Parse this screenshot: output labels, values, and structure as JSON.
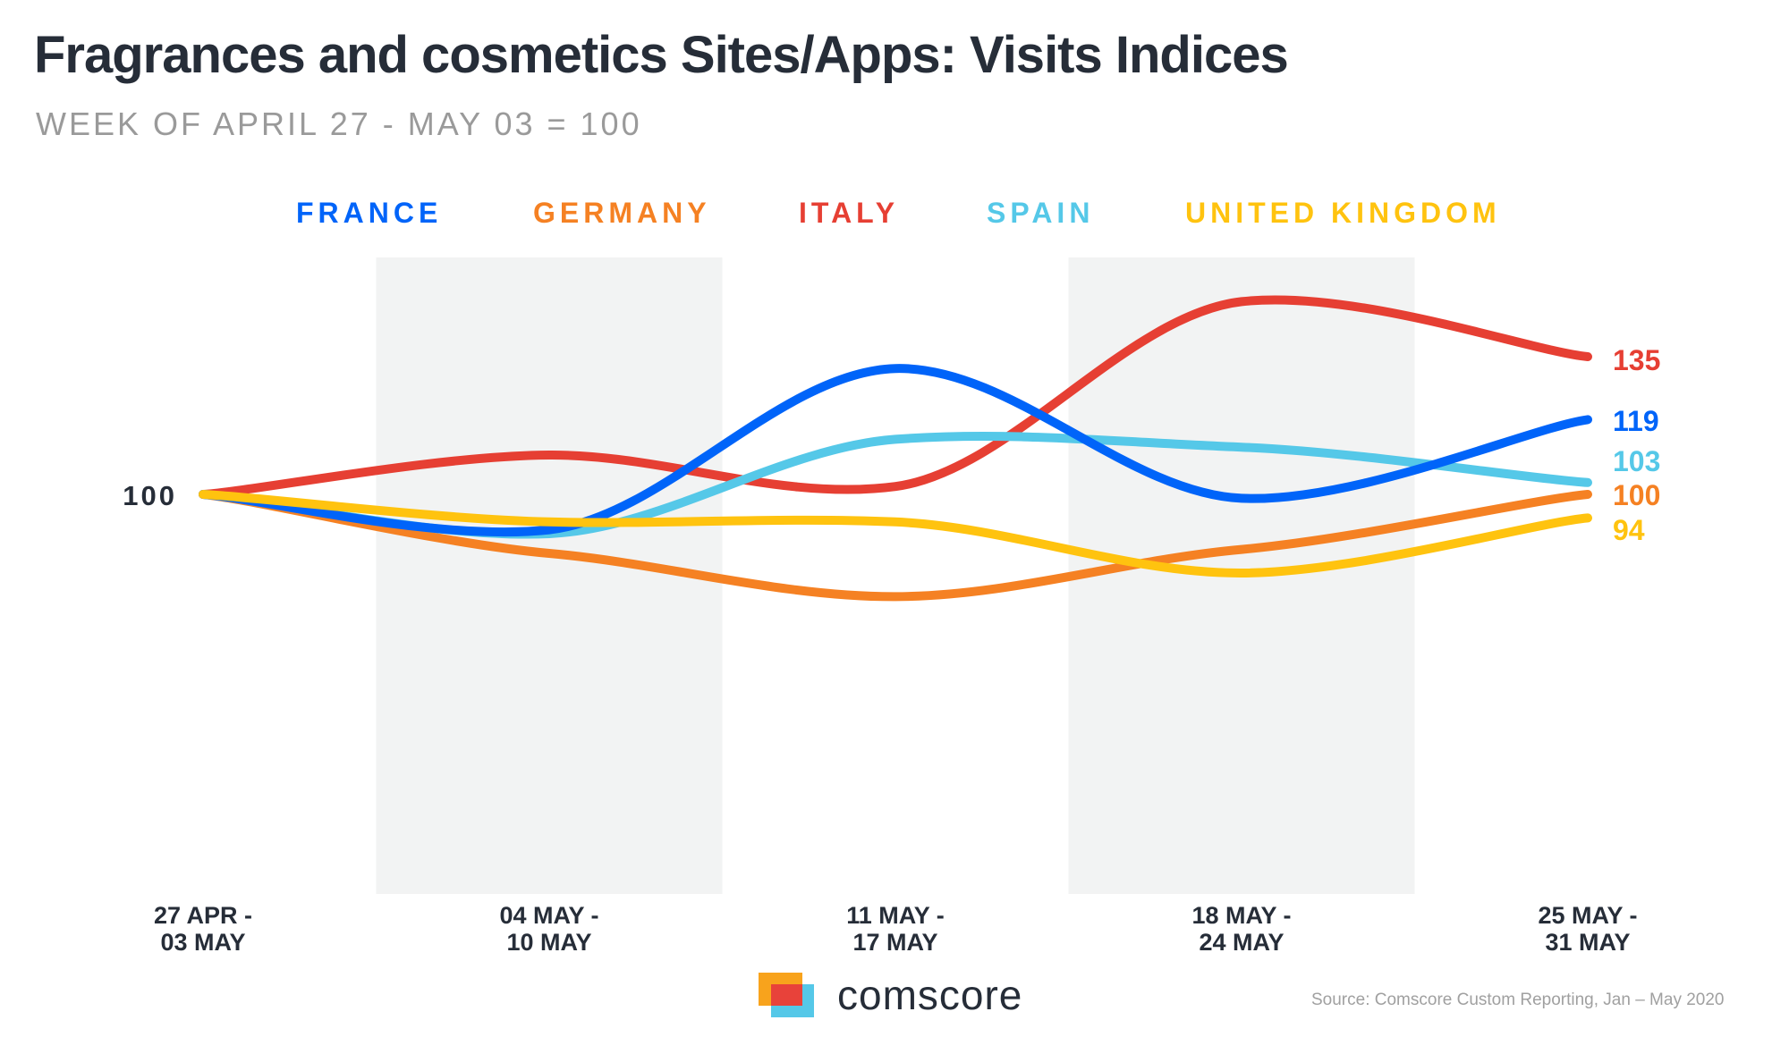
{
  "header": {
    "title": "Fragrances and cosmetics Sites/Apps: Visits Indices",
    "subtitle": "WEEK OF APRIL 27 - MAY 03 = 100"
  },
  "footer": {
    "brand": "comscore",
    "source": "Source: Comscore Custom Reporting, Jan – May 2020"
  },
  "chart_data": {
    "type": "line",
    "title": "Fragrances and cosmetics Sites/Apps: Visits Indices",
    "subtitle": "WEEK OF APRIL 27 - MAY 03 = 100",
    "xlabel": "",
    "ylabel": "",
    "baseline_label": "100",
    "categories": [
      [
        "27 APR -",
        "03 MAY"
      ],
      [
        "04 MAY -",
        "10 MAY"
      ],
      [
        "11 MAY -",
        "17 MAY"
      ],
      [
        "18 MAY -",
        "24 MAY"
      ],
      [
        "25 MAY -",
        "31 MAY"
      ]
    ],
    "shaded_categories": [
      1,
      3
    ],
    "legend_position": "top",
    "grid": false,
    "series": [
      {
        "name": "FRANCE",
        "color": "#0064f9",
        "values": [
          100,
          91,
          132,
          99,
          119
        ],
        "end_label": "119"
      },
      {
        "name": "GERMANY",
        "color": "#f58123",
        "values": [
          100,
          85,
          74,
          86,
          100
        ],
        "end_label": "100"
      },
      {
        "name": "ITALY",
        "color": "#e63f33",
        "values": [
          100,
          110,
          102,
          149,
          135
        ],
        "end_label": "135"
      },
      {
        "name": "SPAIN",
        "color": "#55c8e8",
        "values": [
          100,
          90,
          114,
          112,
          103
        ],
        "end_label": "103"
      },
      {
        "name": "UNITED KINGDOM",
        "color": "#ffc30f",
        "values": [
          100,
          93,
          93,
          80,
          94
        ],
        "end_label": "94"
      }
    ],
    "draw_order": [
      1,
      2,
      3,
      0,
      4
    ]
  }
}
